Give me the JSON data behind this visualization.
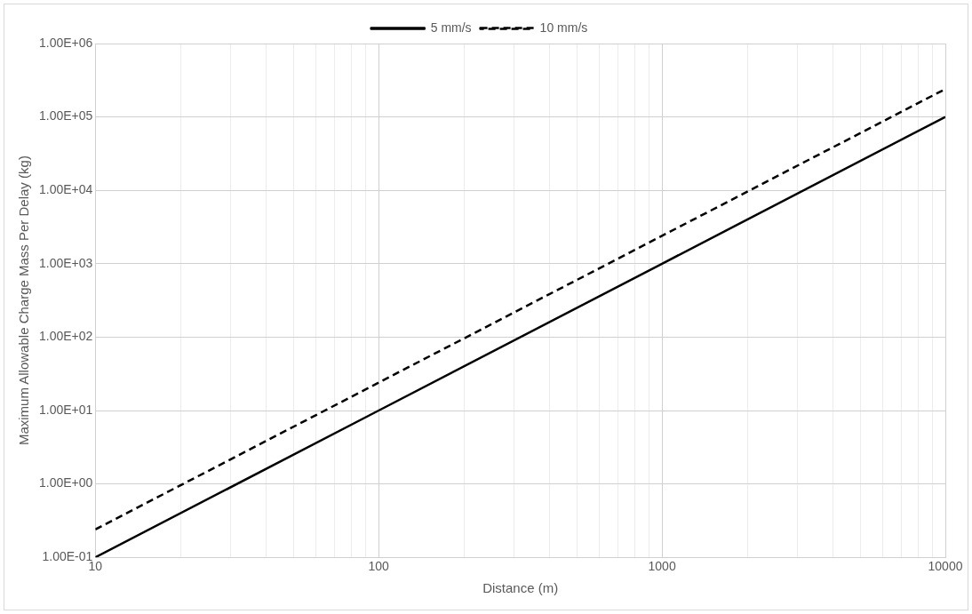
{
  "chart_data": {
    "type": "line",
    "xlabel": "Distance (m)",
    "ylabel": "Maximum Allowable Charge Mass Per Delay (kg)",
    "log": "xy",
    "grid": true,
    "legend": "top",
    "marker": "none",
    "xlim": [
      10,
      10000
    ],
    "xticks": [
      10,
      {
        "value": 20,
        "label": null
      },
      {
        "value": 30,
        "label": null
      },
      {
        "value": 40,
        "label": null
      },
      {
        "value": 50,
        "label": null
      },
      {
        "value": 60,
        "label": null
      },
      {
        "value": 70,
        "label": null
      },
      {
        "value": 80,
        "label": null
      },
      {
        "value": 90,
        "label": null
      },
      100,
      {
        "value": 200,
        "label": null
      },
      {
        "value": 300,
        "label": null
      },
      {
        "value": 400,
        "label": null
      },
      {
        "value": 500,
        "label": null
      },
      {
        "value": 600,
        "label": null
      },
      {
        "value": 700,
        "label": null
      },
      {
        "value": 800,
        "label": null
      },
      {
        "value": 900,
        "label": null
      },
      1000,
      {
        "value": 2000,
        "label": null
      },
      {
        "value": 3000,
        "label": null
      },
      {
        "value": 4000,
        "label": null
      },
      {
        "value": 5000,
        "label": null
      },
      {
        "value": 6000,
        "label": null
      },
      {
        "value": 7000,
        "label": null
      },
      {
        "value": 8000,
        "label": null
      },
      {
        "value": 9000,
        "label": null
      },
      10000
    ],
    "ylim": [
      0.1,
      1000000
    ],
    "yticks": [
      {
        "value": 0.1,
        "label": "1.00E-01"
      },
      {
        "value": 1,
        "label": "1.00E+00"
      },
      {
        "value": 10,
        "label": "1.00E+01"
      },
      {
        "value": 100,
        "label": "1.00E+02"
      },
      {
        "value": 1000,
        "label": "1.00E+03"
      },
      {
        "value": 10000,
        "label": "1.00E+04"
      },
      {
        "value": 100000,
        "label": "1.00E+05"
      },
      {
        "value": 1000000,
        "label": "1.00E+06"
      }
    ],
    "x": [
      10,
      100,
      1000,
      10000
    ],
    "series": [
      {
        "name": "5 mm/s",
        "color": "#000000",
        "line_style": "solid",
        "values": [
          0.1,
          10,
          1000,
          100000
        ]
      },
      {
        "name": "10 mm/s",
        "color": "#000000",
        "line_style": "dashed",
        "values": [
          0.24,
          24,
          2400,
          240000
        ]
      }
    ]
  }
}
